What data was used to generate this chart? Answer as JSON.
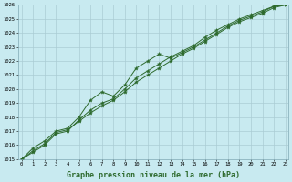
{
  "title": "Graphe pression niveau de la mer (hPa)",
  "x_hours": [
    0,
    1,
    2,
    3,
    4,
    5,
    6,
    7,
    8,
    9,
    10,
    11,
    12,
    13,
    14,
    15,
    16,
    17,
    18,
    19,
    20,
    21,
    22,
    23
  ],
  "series1": [
    1015.0,
    1015.8,
    1016.3,
    1017.0,
    1017.2,
    1018.0,
    1019.2,
    1019.8,
    1019.5,
    1020.3,
    1021.5,
    1022.0,
    1022.5,
    1022.2,
    1022.6,
    1023.0,
    1023.5,
    1024.0,
    1024.5,
    1024.9,
    1025.2,
    1025.5,
    1025.9,
    1026.0
  ],
  "series2": [
    1015.0,
    1015.5,
    1016.0,
    1016.8,
    1017.0,
    1017.8,
    1018.5,
    1019.0,
    1019.3,
    1020.0,
    1020.8,
    1021.3,
    1021.8,
    1022.3,
    1022.7,
    1023.1,
    1023.7,
    1024.2,
    1024.6,
    1025.0,
    1025.3,
    1025.6,
    1025.9,
    1026.0
  ],
  "series3": [
    1015.0,
    1015.6,
    1016.1,
    1016.9,
    1017.1,
    1017.7,
    1018.3,
    1018.8,
    1019.2,
    1019.8,
    1020.5,
    1021.0,
    1021.5,
    1022.0,
    1022.5,
    1022.9,
    1023.4,
    1023.9,
    1024.4,
    1024.8,
    1025.1,
    1025.4,
    1025.8,
    1026.0
  ],
  "line_color": "#2d6a2d",
  "marker_color": "#2d6a2d",
  "bg_color": "#c8eaf0",
  "grid_color": "#aaccd4",
  "title_color": "#2d6a2d",
  "ylim": [
    1015,
    1026
  ],
  "yticks": [
    1015,
    1016,
    1017,
    1018,
    1019,
    1020,
    1021,
    1022,
    1023,
    1024,
    1025,
    1026
  ],
  "xticks": [
    0,
    1,
    2,
    3,
    4,
    5,
    6,
    7,
    8,
    9,
    10,
    11,
    12,
    13,
    14,
    15,
    16,
    17,
    18,
    19,
    20,
    21,
    22,
    23
  ]
}
